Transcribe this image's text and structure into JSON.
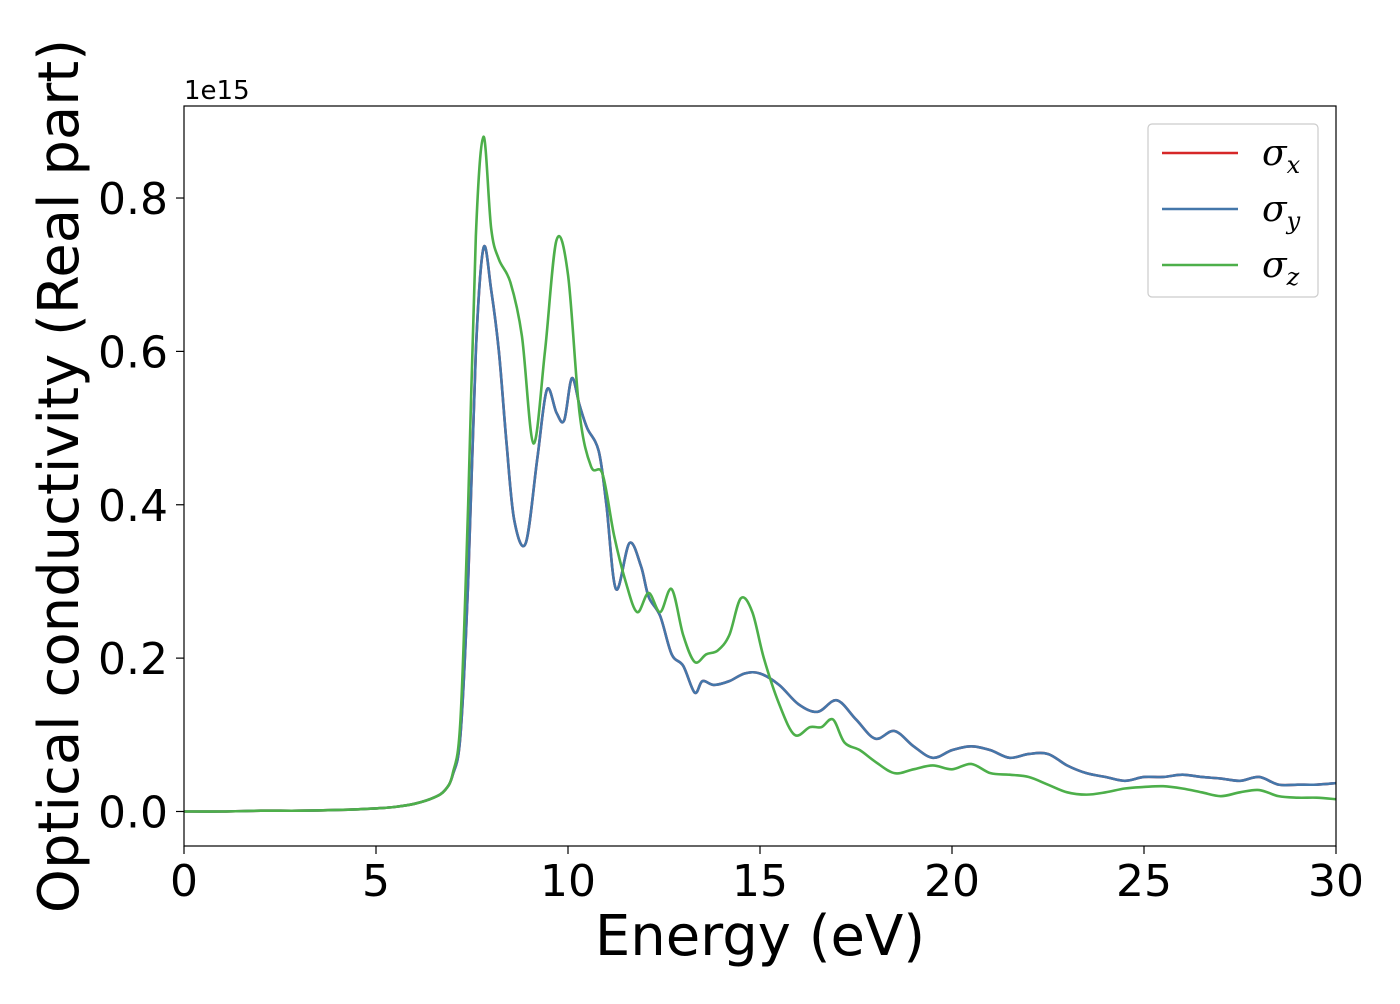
{
  "chart_data": {
    "type": "line",
    "xlabel": "Energy (eV)",
    "ylabel": "Optical conductivity (Real part)",
    "offset_text": "1e15",
    "xlim": [
      0,
      30
    ],
    "ylim": [
      -0.045,
      0.92
    ],
    "y_multiplier": "1e15",
    "x_ticks": [
      0,
      5,
      10,
      15,
      20,
      25,
      30
    ],
    "x_tick_labels": [
      "0",
      "5",
      "10",
      "15",
      "20",
      "25",
      "30"
    ],
    "y_ticks": [
      0.0,
      0.2,
      0.4,
      0.6,
      0.8
    ],
    "y_tick_labels": [
      "0.0",
      "0.2",
      "0.4",
      "0.6",
      "0.8"
    ],
    "grid": false,
    "legend_position": "top-right",
    "series": [
      {
        "name": "σx",
        "sym": "σ",
        "sub": "x",
        "color": "#d62728",
        "x": [
          0,
          1,
          2,
          3,
          4,
          5,
          5.5,
          6,
          6.5,
          6.8,
          7.0,
          7.2,
          7.4,
          7.6,
          7.8,
          8.0,
          8.2,
          8.4,
          8.6,
          8.9,
          9.2,
          9.45,
          9.7,
          9.9,
          10.1,
          10.3,
          10.5,
          10.8,
          11.0,
          11.25,
          11.6,
          11.9,
          12.1,
          12.4,
          12.7,
          13.0,
          13.3,
          13.5,
          13.8,
          14.2,
          14.6,
          15.0,
          15.5,
          16.0,
          16.5,
          17.0,
          17.5,
          18.0,
          18.5,
          19.0,
          19.5,
          20.0,
          20.5,
          21.0,
          21.5,
          22.0,
          22.5,
          23.0,
          23.5,
          24.0,
          24.5,
          25.0,
          25.5,
          26.0,
          26.5,
          27.0,
          27.5,
          28.0,
          28.5,
          29.0,
          29.5,
          30
        ],
        "values": [
          0,
          0,
          0.001,
          0.001,
          0.002,
          0.004,
          0.006,
          0.01,
          0.018,
          0.028,
          0.048,
          0.1,
          0.3,
          0.6,
          0.735,
          0.68,
          0.6,
          0.48,
          0.38,
          0.35,
          0.46,
          0.55,
          0.52,
          0.51,
          0.565,
          0.53,
          0.5,
          0.47,
          0.4,
          0.29,
          0.35,
          0.32,
          0.28,
          0.255,
          0.205,
          0.19,
          0.155,
          0.17,
          0.165,
          0.17,
          0.18,
          0.18,
          0.165,
          0.14,
          0.13,
          0.145,
          0.12,
          0.095,
          0.105,
          0.085,
          0.07,
          0.08,
          0.085,
          0.08,
          0.07,
          0.075,
          0.075,
          0.06,
          0.05,
          0.045,
          0.04,
          0.045,
          0.045,
          0.048,
          0.045,
          0.043,
          0.04,
          0.045,
          0.035,
          0.035,
          0.035,
          0.037
        ]
      },
      {
        "name": "σy",
        "sym": "σ",
        "sub": "y",
        "color": "#4477aa",
        "x": [
          0,
          1,
          2,
          3,
          4,
          5,
          5.5,
          6,
          6.5,
          6.8,
          7.0,
          7.2,
          7.4,
          7.6,
          7.8,
          8.0,
          8.2,
          8.4,
          8.6,
          8.9,
          9.2,
          9.45,
          9.7,
          9.9,
          10.1,
          10.3,
          10.5,
          10.8,
          11.0,
          11.25,
          11.6,
          11.9,
          12.1,
          12.4,
          12.7,
          13.0,
          13.3,
          13.5,
          13.8,
          14.2,
          14.6,
          15.0,
          15.5,
          16.0,
          16.5,
          17.0,
          17.5,
          18.0,
          18.5,
          19.0,
          19.5,
          20.0,
          20.5,
          21.0,
          21.5,
          22.0,
          22.5,
          23.0,
          23.5,
          24.0,
          24.5,
          25.0,
          25.5,
          26.0,
          26.5,
          27.0,
          27.5,
          28.0,
          28.5,
          29.0,
          29.5,
          30
        ],
        "values": [
          0,
          0,
          0.001,
          0.001,
          0.002,
          0.004,
          0.006,
          0.01,
          0.018,
          0.028,
          0.048,
          0.1,
          0.3,
          0.6,
          0.735,
          0.68,
          0.6,
          0.48,
          0.38,
          0.35,
          0.46,
          0.55,
          0.52,
          0.51,
          0.565,
          0.53,
          0.5,
          0.47,
          0.4,
          0.29,
          0.35,
          0.32,
          0.28,
          0.255,
          0.205,
          0.19,
          0.155,
          0.17,
          0.165,
          0.17,
          0.18,
          0.18,
          0.165,
          0.14,
          0.13,
          0.145,
          0.12,
          0.095,
          0.105,
          0.085,
          0.07,
          0.08,
          0.085,
          0.08,
          0.07,
          0.075,
          0.075,
          0.06,
          0.05,
          0.045,
          0.04,
          0.045,
          0.045,
          0.048,
          0.045,
          0.043,
          0.04,
          0.045,
          0.035,
          0.035,
          0.035,
          0.037
        ]
      },
      {
        "name": "σz",
        "sym": "σ",
        "sub": "z",
        "color": "#4daf4a",
        "x": [
          0,
          1,
          2,
          3,
          4,
          5,
          5.5,
          6,
          6.5,
          6.8,
          7.0,
          7.2,
          7.4,
          7.6,
          7.8,
          8.0,
          8.2,
          8.5,
          8.8,
          9.1,
          9.4,
          9.7,
          10.0,
          10.3,
          10.6,
          10.9,
          11.2,
          11.5,
          11.8,
          12.1,
          12.4,
          12.7,
          13.0,
          13.3,
          13.6,
          13.9,
          14.2,
          14.5,
          14.8,
          15.1,
          15.5,
          15.9,
          16.3,
          16.6,
          16.9,
          17.2,
          17.6,
          18.0,
          18.5,
          19.0,
          19.5,
          20.0,
          20.5,
          21.0,
          21.5,
          22.0,
          22.5,
          23.0,
          23.5,
          24.0,
          24.5,
          25.0,
          25.5,
          26.0,
          26.5,
          27.0,
          27.5,
          28.0,
          28.5,
          29.0,
          29.5,
          30
        ],
        "values": [
          0,
          0,
          0.001,
          0.001,
          0.002,
          0.004,
          0.006,
          0.01,
          0.018,
          0.028,
          0.05,
          0.12,
          0.4,
          0.75,
          0.88,
          0.76,
          0.72,
          0.69,
          0.62,
          0.48,
          0.6,
          0.745,
          0.7,
          0.52,
          0.45,
          0.44,
          0.36,
          0.3,
          0.26,
          0.285,
          0.26,
          0.29,
          0.23,
          0.195,
          0.205,
          0.21,
          0.23,
          0.278,
          0.26,
          0.2,
          0.14,
          0.1,
          0.11,
          0.11,
          0.12,
          0.09,
          0.08,
          0.065,
          0.05,
          0.055,
          0.06,
          0.055,
          0.062,
          0.05,
          0.048,
          0.045,
          0.035,
          0.025,
          0.022,
          0.025,
          0.03,
          0.032,
          0.033,
          0.03,
          0.025,
          0.02,
          0.025,
          0.028,
          0.02,
          0.018,
          0.018,
          0.016
        ]
      }
    ]
  }
}
